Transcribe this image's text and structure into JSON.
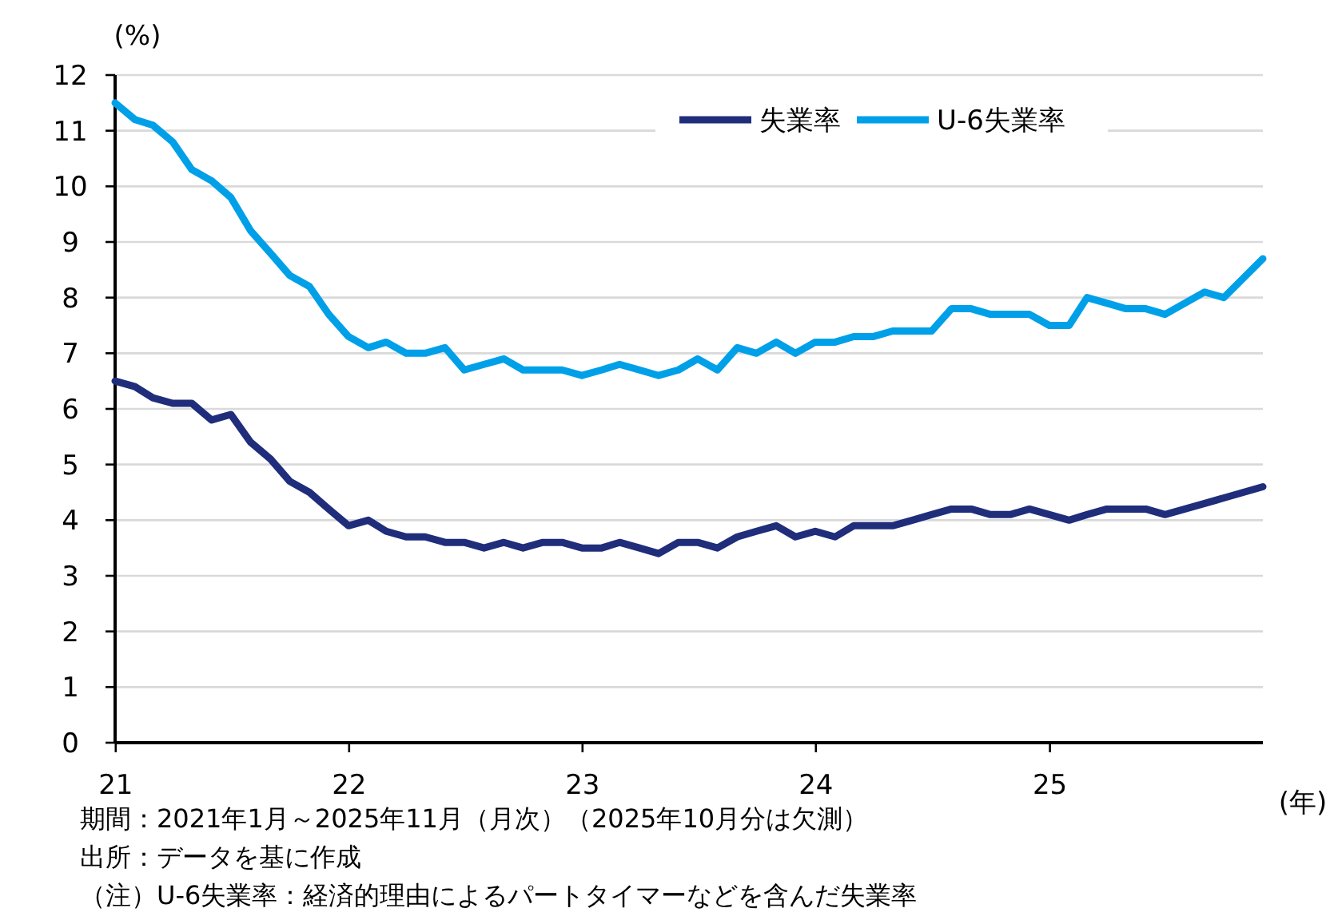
{
  "chart_data": {
    "type": "line",
    "ylabel": "(%)",
    "xlabel": "(年)",
    "x": [
      "2020-12-31",
      "2021-01-31",
      "2021-02-28",
      "2021-03-31",
      "2021-04-30",
      "2021-05-31",
      "2021-06-30",
      "2021-07-31",
      "2021-08-31",
      "2021-09-30",
      "2021-10-31",
      "2021-11-30",
      "2021-12-31",
      "2022-01-31",
      "2022-02-28",
      "2022-03-31",
      "2022-04-30",
      "2022-05-31",
      "2022-06-30",
      "2022-07-31",
      "2022-08-31",
      "2022-09-30",
      "2022-10-31",
      "2022-11-30",
      "2022-12-31",
      "2023-01-31",
      "2023-02-28",
      "2023-03-31",
      "2023-04-30",
      "2023-05-31",
      "2023-06-30",
      "2023-07-31",
      "2023-08-31",
      "2023-09-30",
      "2023-10-31",
      "2023-11-30",
      "2023-12-31",
      "2024-01-31",
      "2024-02-29",
      "2024-03-31",
      "2024-04-30",
      "2024-05-31",
      "2024-06-30",
      "2024-07-31",
      "2024-08-31",
      "2024-09-30",
      "2024-10-31",
      "2024-11-30",
      "2024-12-31",
      "2025-01-31",
      "2025-02-28",
      "2025-03-31",
      "2025-04-30",
      "2025-05-31",
      "2025-06-30",
      "2025-07-31",
      "2025-08-31",
      "2025-09-30",
      "2025-11-30"
    ],
    "series": [
      {
        "name": "失業率",
        "color": "#1f2d7b",
        "values": [
          6.5,
          6.4,
          6.2,
          6.1,
          6.1,
          5.8,
          5.9,
          5.4,
          5.1,
          4.7,
          4.5,
          4.2,
          3.9,
          4.0,
          3.8,
          3.7,
          3.7,
          3.6,
          3.6,
          3.5,
          3.6,
          3.5,
          3.6,
          3.6,
          3.5,
          3.5,
          3.6,
          3.5,
          3.4,
          3.6,
          3.6,
          3.5,
          3.7,
          3.8,
          3.9,
          3.7,
          3.8,
          3.7,
          3.9,
          3.9,
          3.9,
          4.0,
          4.1,
          4.2,
          4.2,
          4.1,
          4.1,
          4.2,
          4.1,
          4.0,
          4.1,
          4.2,
          4.2,
          4.2,
          4.1,
          4.2,
          4.3,
          4.4,
          4.6
        ]
      },
      {
        "name": "U-6失業率",
        "color": "#00a0e9",
        "values": [
          11.5,
          11.2,
          11.1,
          10.8,
          10.3,
          10.1,
          9.8,
          9.2,
          8.8,
          8.4,
          8.2,
          7.7,
          7.3,
          7.1,
          7.2,
          7.0,
          7.0,
          7.1,
          6.7,
          6.8,
          6.9,
          6.7,
          6.7,
          6.7,
          6.6,
          6.7,
          6.8,
          6.7,
          6.6,
          6.7,
          6.9,
          6.7,
          7.1,
          7.0,
          7.2,
          7.0,
          7.2,
          7.2,
          7.3,
          7.3,
          7.4,
          7.4,
          7.4,
          7.8,
          7.8,
          7.7,
          7.7,
          7.7,
          7.5,
          7.5,
          8.0,
          7.9,
          7.8,
          7.8,
          7.7,
          7.9,
          8.1,
          8.0,
          8.7
        ]
      }
    ],
    "xlim": [
      "2020-12-31",
      "2025-11-30"
    ],
    "xticks": [
      {
        "value": "2021-01-01",
        "label": "21"
      },
      {
        "value": "2022-01-01",
        "label": "22"
      },
      {
        "value": "2023-01-01",
        "label": "23"
      },
      {
        "value": "2024-01-01",
        "label": "24"
      },
      {
        "value": "2025-01-01",
        "label": "25"
      }
    ],
    "ylim": [
      0,
      12
    ],
    "yticks": [
      0,
      1,
      2,
      3,
      4,
      5,
      6,
      7,
      8,
      9,
      10,
      11,
      12
    ],
    "grid": "y",
    "legend": "top right",
    "marker": "none",
    "line_style": "solid",
    "annotations": [
      "期間：2021年1月～2025年11月（月次）（2025年10月分は欠測）",
      "出所：データを基に作成",
      "（注）U-6失業率：経済的理由によるパートタイマーなどを含んだ失業率"
    ]
  }
}
